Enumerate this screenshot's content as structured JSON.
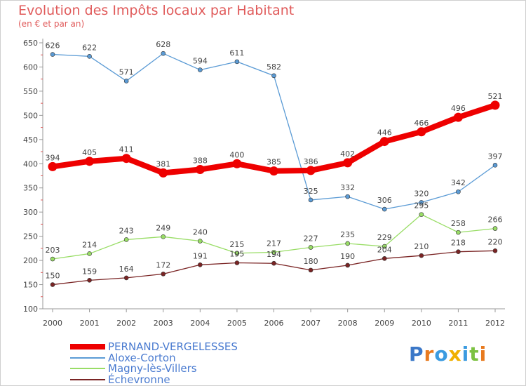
{
  "header": {
    "title": "Evolution des Impôts locaux par Habitant",
    "subtitle": "(en € et par an)"
  },
  "chart_data": {
    "type": "line",
    "title": "Evolution des Impôts locaux par Habitant",
    "subtitle": "(en € et par an)",
    "xlabel": "",
    "ylabel": "",
    "x": [
      "2000",
      "2001",
      "2002",
      "2003",
      "2004",
      "2005",
      "2006",
      "2007",
      "2008",
      "2009",
      "2010",
      "2011",
      "2012"
    ],
    "ylim": [
      100,
      650
    ],
    "yticks": [
      100,
      150,
      200,
      250,
      300,
      350,
      400,
      450,
      500,
      550,
      600,
      650
    ],
    "grid": false,
    "legend": "bottom-left",
    "series": [
      {
        "name": "PERNAND-VERGELESSES",
        "color": "#ee0000",
        "values": [
          394,
          405,
          411,
          381,
          388,
          400,
          385,
          386,
          402,
          446,
          466,
          496,
          521
        ]
      },
      {
        "name": "Aloxe-Corton",
        "color": "#5b9bd5",
        "values": [
          626,
          622,
          571,
          628,
          594,
          611,
          582,
          325,
          332,
          306,
          320,
          342,
          397
        ]
      },
      {
        "name": "Magny-lès-Villers",
        "color": "#99dd66",
        "values": [
          203,
          214,
          243,
          249,
          240,
          215,
          217,
          227,
          235,
          229,
          295,
          258,
          266
        ]
      },
      {
        "name": "Échevronne",
        "color": "#7a2424",
        "values": [
          150,
          159,
          164,
          172,
          191,
          195,
          194,
          180,
          190,
          204,
          210,
          218,
          220
        ]
      }
    ]
  },
  "legend": {
    "items": [
      {
        "label": "PERNAND-VERGELESSES",
        "color": "#ee0000"
      },
      {
        "label": "Aloxe-Corton",
        "color": "#5b9bd5"
      },
      {
        "label": "Magny-lès-Villers",
        "color": "#99dd66"
      },
      {
        "label": "Échevronne",
        "color": "#7a2424"
      }
    ]
  },
  "brand": {
    "letters": [
      {
        "char": "P",
        "color": "#3b78c8"
      },
      {
        "char": "r",
        "color": "#e87a1f"
      },
      {
        "char": "o",
        "color": "#3b9be0"
      },
      {
        "char": "x",
        "color": "#f0b000"
      },
      {
        "char": "i",
        "color": "#3b9be0"
      },
      {
        "char": "t",
        "color": "#7cc242"
      },
      {
        "char": "i",
        "color": "#e87a1f"
      }
    ]
  }
}
